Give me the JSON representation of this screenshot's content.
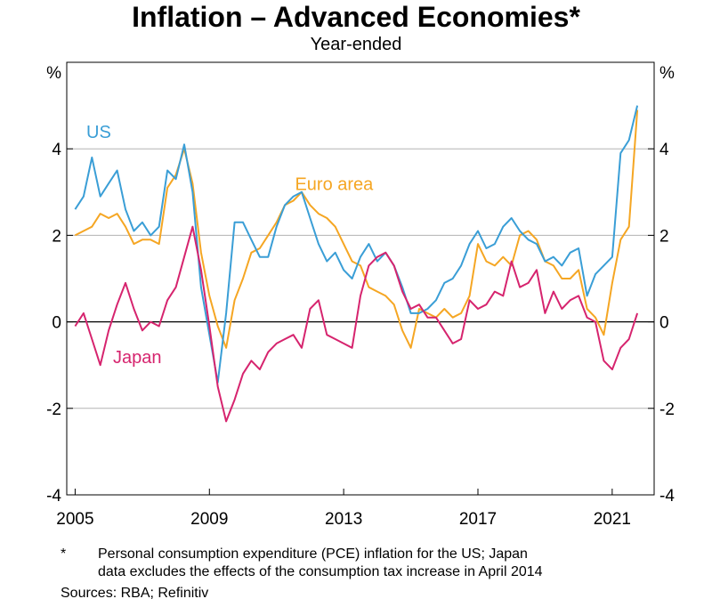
{
  "title": "Inflation – Advanced Economies*",
  "subtitle": "Year-ended",
  "footnote_marker": "*",
  "footnote_line1": "Personal consumption expenditure (PCE) inflation for the US; Japan",
  "footnote_line2": "data excludes the effects of the consumption tax increase in April 2014",
  "sources": "Sources: RBA; Refinitiv",
  "chart_data": {
    "type": "line",
    "title": "Inflation – Advanced Economies*",
    "subtitle": "Year-ended",
    "xlim": [
      2004.75,
      2022.25
    ],
    "ylim": [
      -4,
      6
    ],
    "y_unit_left": "%",
    "y_unit_right": "%",
    "x_ticks": [
      2005,
      2009,
      2013,
      2017,
      2021
    ],
    "y_ticks": [
      -4,
      -2,
      0,
      2,
      4
    ],
    "grid": true,
    "series": [
      {
        "name": "US",
        "color": "#3A9ED6",
        "label_position": "top-left",
        "x": [
          2005.0,
          2005.25,
          2005.5,
          2005.75,
          2006.0,
          2006.25,
          2006.5,
          2006.75,
          2007.0,
          2007.25,
          2007.5,
          2007.75,
          2008.0,
          2008.25,
          2008.5,
          2008.75,
          2009.0,
          2009.25,
          2009.5,
          2009.75,
          2010.0,
          2010.25,
          2010.5,
          2010.75,
          2011.0,
          2011.25,
          2011.5,
          2011.75,
          2012.0,
          2012.25,
          2012.5,
          2012.75,
          2013.0,
          2013.25,
          2013.5,
          2013.75,
          2014.0,
          2014.25,
          2014.5,
          2014.75,
          2015.0,
          2015.25,
          2015.5,
          2015.75,
          2016.0,
          2016.25,
          2016.5,
          2016.75,
          2017.0,
          2017.25,
          2017.5,
          2017.75,
          2018.0,
          2018.25,
          2018.5,
          2018.75,
          2019.0,
          2019.25,
          2019.5,
          2019.75,
          2020.0,
          2020.25,
          2020.5,
          2020.75,
          2021.0,
          2021.25,
          2021.5,
          2021.75
        ],
        "values": [
          2.6,
          2.9,
          3.8,
          2.9,
          3.2,
          3.5,
          2.6,
          2.1,
          2.3,
          2.0,
          2.2,
          3.5,
          3.3,
          4.1,
          3.0,
          0.8,
          -0.3,
          -1.4,
          0.2,
          2.3,
          2.3,
          1.9,
          1.5,
          1.5,
          2.2,
          2.7,
          2.9,
          3.0,
          2.4,
          1.8,
          1.4,
          1.6,
          1.2,
          1.0,
          1.5,
          1.8,
          1.4,
          1.6,
          1.3,
          0.8,
          0.2,
          0.2,
          0.3,
          0.5,
          0.9,
          1.0,
          1.3,
          1.8,
          2.1,
          1.7,
          1.8,
          2.2,
          2.4,
          2.1,
          1.9,
          1.8,
          1.4,
          1.5,
          1.3,
          1.6,
          1.7,
          0.6,
          1.1,
          1.3,
          1.5,
          3.9,
          4.2,
          5.0
        ]
      },
      {
        "name": "Euro area",
        "color": "#F5A623",
        "label_position": "top-center",
        "x": [
          2005.0,
          2005.25,
          2005.5,
          2005.75,
          2006.0,
          2006.25,
          2006.5,
          2006.75,
          2007.0,
          2007.25,
          2007.5,
          2007.75,
          2008.0,
          2008.25,
          2008.5,
          2008.75,
          2009.0,
          2009.25,
          2009.5,
          2009.75,
          2010.0,
          2010.25,
          2010.5,
          2010.75,
          2011.0,
          2011.25,
          2011.5,
          2011.75,
          2012.0,
          2012.25,
          2012.5,
          2012.75,
          2013.0,
          2013.25,
          2013.5,
          2013.75,
          2014.0,
          2014.25,
          2014.5,
          2014.75,
          2015.0,
          2015.25,
          2015.5,
          2015.75,
          2016.0,
          2016.25,
          2016.5,
          2016.75,
          2017.0,
          2017.25,
          2017.5,
          2017.75,
          2018.0,
          2018.25,
          2018.5,
          2018.75,
          2019.0,
          2019.25,
          2019.5,
          2019.75,
          2020.0,
          2020.25,
          2020.5,
          2020.75,
          2021.0,
          2021.25,
          2021.5,
          2021.75
        ],
        "values": [
          2.0,
          2.1,
          2.2,
          2.5,
          2.4,
          2.5,
          2.2,
          1.8,
          1.9,
          1.9,
          1.8,
          3.1,
          3.4,
          4.0,
          3.2,
          1.6,
          0.6,
          -0.1,
          -0.6,
          0.5,
          1.0,
          1.6,
          1.7,
          2.0,
          2.3,
          2.7,
          2.8,
          3.0,
          2.7,
          2.5,
          2.4,
          2.2,
          1.8,
          1.4,
          1.3,
          0.8,
          0.7,
          0.6,
          0.4,
          -0.2,
          -0.6,
          0.3,
          0.2,
          0.1,
          0.3,
          0.1,
          0.2,
          0.6,
          1.8,
          1.4,
          1.3,
          1.5,
          1.3,
          2.0,
          2.1,
          1.9,
          1.4,
          1.3,
          1.0,
          1.0,
          1.2,
          0.3,
          0.1,
          -0.3,
          0.9,
          1.9,
          2.2,
          4.9
        ]
      },
      {
        "name": "Japan",
        "color": "#D6246E",
        "label_position": "bottom-left",
        "x": [
          2005.0,
          2005.25,
          2005.5,
          2005.75,
          2006.0,
          2006.25,
          2006.5,
          2006.75,
          2007.0,
          2007.25,
          2007.5,
          2007.75,
          2008.0,
          2008.25,
          2008.5,
          2008.75,
          2009.0,
          2009.25,
          2009.5,
          2009.75,
          2010.0,
          2010.25,
          2010.5,
          2010.75,
          2011.0,
          2011.25,
          2011.5,
          2011.75,
          2012.0,
          2012.25,
          2012.5,
          2012.75,
          2013.0,
          2013.25,
          2013.5,
          2013.75,
          2014.0,
          2014.25,
          2014.5,
          2014.75,
          2015.0,
          2015.25,
          2015.5,
          2015.75,
          2016.0,
          2016.25,
          2016.5,
          2016.75,
          2017.0,
          2017.25,
          2017.5,
          2017.75,
          2018.0,
          2018.25,
          2018.5,
          2018.75,
          2019.0,
          2019.25,
          2019.5,
          2019.75,
          2020.0,
          2020.25,
          2020.5,
          2020.75,
          2021.0,
          2021.25,
          2021.5,
          2021.75
        ],
        "values": [
          -0.1,
          0.2,
          -0.4,
          -1.0,
          -0.2,
          0.4,
          0.9,
          0.3,
          -0.2,
          0.0,
          -0.1,
          0.5,
          0.8,
          1.5,
          2.2,
          1.2,
          -0.1,
          -1.5,
          -2.3,
          -1.8,
          -1.2,
          -0.9,
          -1.1,
          -0.7,
          -0.5,
          -0.4,
          -0.3,
          -0.6,
          0.3,
          0.5,
          -0.3,
          -0.4,
          -0.5,
          -0.6,
          0.6,
          1.3,
          1.5,
          1.6,
          1.3,
          0.7,
          0.3,
          0.4,
          0.1,
          0.1,
          -0.2,
          -0.5,
          -0.4,
          0.5,
          0.3,
          0.4,
          0.7,
          0.6,
          1.4,
          0.8,
          0.9,
          1.2,
          0.2,
          0.7,
          0.3,
          0.5,
          0.6,
          0.1,
          0.0,
          -0.9,
          -1.1,
          -0.6,
          -0.4,
          0.2
        ]
      }
    ]
  }
}
